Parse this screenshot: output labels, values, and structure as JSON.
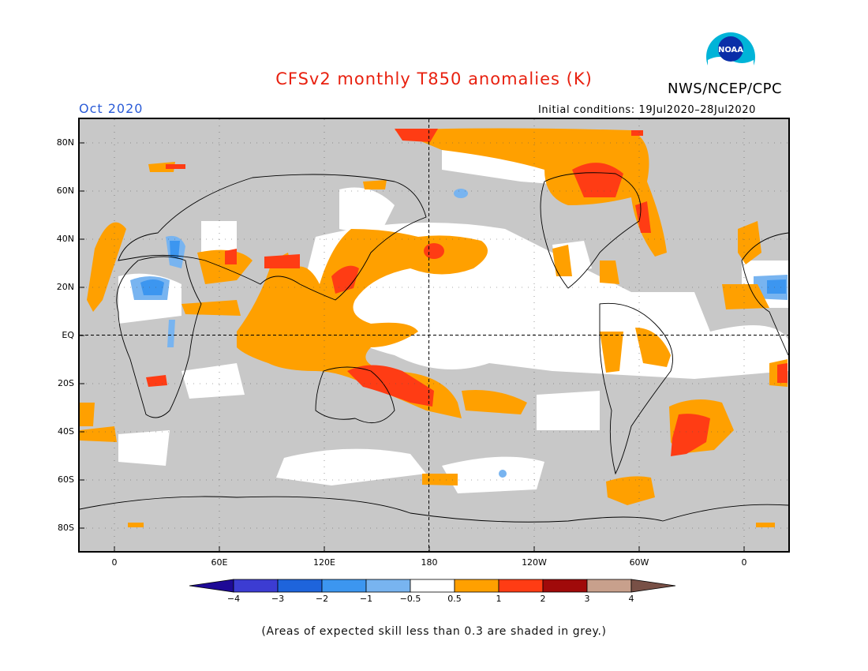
{
  "header": {
    "title": "CFSv2 monthly T850 anomalies (K)",
    "month": "Oct 2020",
    "agency": "NWS/NCEP/CPC",
    "logo_text": "NOAA",
    "initial_conditions": "Initial conditions: 19Jul2020–28Jul2020"
  },
  "map": {
    "lat_labels": [
      "80N",
      "60N",
      "40N",
      "20N",
      "EQ",
      "20S",
      "40S",
      "60S",
      "80S"
    ],
    "lon_labels": [
      "0",
      "60E",
      "120E",
      "180",
      "120W",
      "60W",
      "0"
    ],
    "colors": {
      "skill_grey": "#c8c8c8",
      "neutral": "#ffffff",
      "land_outline": "#000000"
    }
  },
  "colorbar": {
    "labels": [
      "−4",
      "−3",
      "−2",
      "−1",
      "−0.5",
      "0.5",
      "1",
      "2",
      "3",
      "4"
    ],
    "colors": [
      "#1e0a96",
      "#3c3cd2",
      "#1e64dc",
      "#3c96f0",
      "#78b4f0",
      "#ffffff",
      "#ffa000",
      "#ff3c14",
      "#a00a0a",
      "#c8a08c",
      "#785046"
    ]
  },
  "footnote": "(Areas of expected skill less than 0.3 are shaded in grey.)"
}
